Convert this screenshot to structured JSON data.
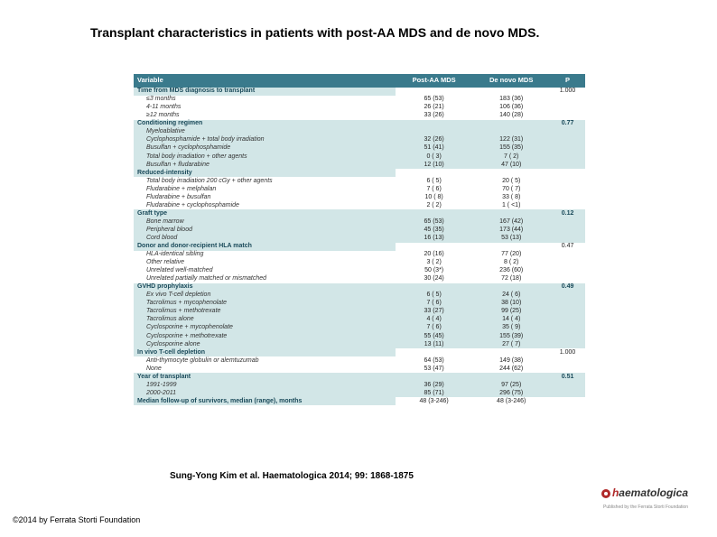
{
  "title": "Transplant characteristics in patients with post-AA MDS and de novo MDS.",
  "citation": "Sung-Yong Kim et al. Haematologica 2014; 99: 1868-1875",
  "copyright": "©2014 by Ferrata Storti Foundation",
  "logo": {
    "h": "h",
    "rest": "aematologica",
    "sub": "Published by the Ferrata Storti Foundation"
  },
  "table": {
    "headers": [
      "Variable",
      "Post-AA MDS",
      "De novo MDS",
      "P"
    ],
    "sections": [
      {
        "category": "Time from MDS diagnosis to transplant",
        "p": "1.000",
        "band": false,
        "rows": [
          {
            "label": "≤3 months",
            "a": "65 (53)",
            "b": "183 (36)"
          },
          {
            "label": "4-11 months",
            "a": "26 (21)",
            "b": "106 (36)"
          },
          {
            "label": "≥12 months",
            "a": "33 (26)",
            "b": "140 (28)"
          }
        ]
      },
      {
        "category": "Conditioning regimen",
        "p": "0.77",
        "band": true,
        "rows": [
          {
            "label": "Myeloablative",
            "a": "",
            "b": ""
          },
          {
            "label": "Cyclophosphamide + total body irradiation",
            "a": "32 (26)",
            "b": "122 (31)"
          },
          {
            "label": "Busulfan + cyclophosphamide",
            "a": "51 (41)",
            "b": "155 (35)"
          },
          {
            "label": "Total body irradiation + other agents",
            "a": "0 ( 3)",
            "b": "7 ( 2)"
          },
          {
            "label": "Busulfan + fludarabine",
            "a": "12 (10)",
            "b": "47 (10)"
          }
        ]
      },
      {
        "category": "Reduced-intensity",
        "p": "",
        "band": false,
        "rows": [
          {
            "label": "Total body irradiation 200 cGy + other agents",
            "a": "6 ( 5)",
            "b": "20 ( 5)"
          },
          {
            "label": "Fludarabine + melphalan",
            "a": "7 ( 6)",
            "b": "70 ( 7)"
          },
          {
            "label": "Fludarabine + busulfan",
            "a": "10 ( 8)",
            "b": "33 ( 8)"
          },
          {
            "label": "Fludarabine + cyclophosphamide",
            "a": "2 ( 2)",
            "b": "1 ( <1)"
          }
        ]
      },
      {
        "category": "Graft type",
        "p": "0.12",
        "band": true,
        "rows": [
          {
            "label": "Bone marrow",
            "a": "65 (53)",
            "b": "167 (42)"
          },
          {
            "label": "Peripheral blood",
            "a": "45 (35)",
            "b": "173 (44)"
          },
          {
            "label": "Cord blood",
            "a": "16 (13)",
            "b": "53 (13)"
          }
        ]
      },
      {
        "category": "Donor and donor-recipient HLA match",
        "p": "0.47",
        "band": false,
        "rows": [
          {
            "label": "HLA-identical sibling",
            "a": "20 (16)",
            "b": "77 (20)"
          },
          {
            "label": "Other relative",
            "a": "3 ( 2)",
            "b": "8 ( 2)"
          },
          {
            "label": "Unrelated well-matched",
            "a": "50 (3*)",
            "b": "236 (60)"
          },
          {
            "label": "Unrelated partially matched or mismatched",
            "a": "30 (24)",
            "b": "72 (18)"
          }
        ]
      },
      {
        "category": "GVHD prophylaxis",
        "p": "0.49",
        "band": true,
        "rows": [
          {
            "label": "Ex vivo T-cell depletion",
            "a": "6 ( 5)",
            "b": "24 ( 6)"
          },
          {
            "label": "Tacrolimus + mycophenolate",
            "a": "7 ( 6)",
            "b": "38 (10)"
          },
          {
            "label": "Tacrolimus + methotrexate",
            "a": "33 (27)",
            "b": "99 (25)"
          },
          {
            "label": "Tacrolimus alone",
            "a": "4 ( 4)",
            "b": "14 ( 4)"
          },
          {
            "label": "Cyclosporine + mycophenolate",
            "a": "7 ( 6)",
            "b": "35 ( 9)"
          },
          {
            "label": "Cyclosporine + methotrexate",
            "a": "55 (45)",
            "b": "155 (39)"
          },
          {
            "label": "Cyclosporine alone",
            "a": "13 (11)",
            "b": "27 ( 7)"
          }
        ]
      },
      {
        "category": "In vivo T-cell depletion",
        "p": "1.000",
        "band": false,
        "rows": [
          {
            "label": "Anti-thymocyte globulin or alemtuzumab",
            "a": "64 (53)",
            "b": "149 (38)"
          },
          {
            "label": "None",
            "a": "53 (47)",
            "b": "244 (62)"
          }
        ]
      },
      {
        "category": "Year of transplant",
        "p": "0.51",
        "band": true,
        "rows": [
          {
            "label": "1991-1999",
            "a": "36 (29)",
            "b": "97 (25)"
          },
          {
            "label": "2000-2011",
            "a": "85 (71)",
            "b": "296 (75)"
          }
        ]
      },
      {
        "category": "Median follow-up of survivors, median (range), months",
        "p": "",
        "band": false,
        "inlineA": "48 (3-246)",
        "inlineB": "48 (3-246)",
        "rows": []
      }
    ]
  }
}
